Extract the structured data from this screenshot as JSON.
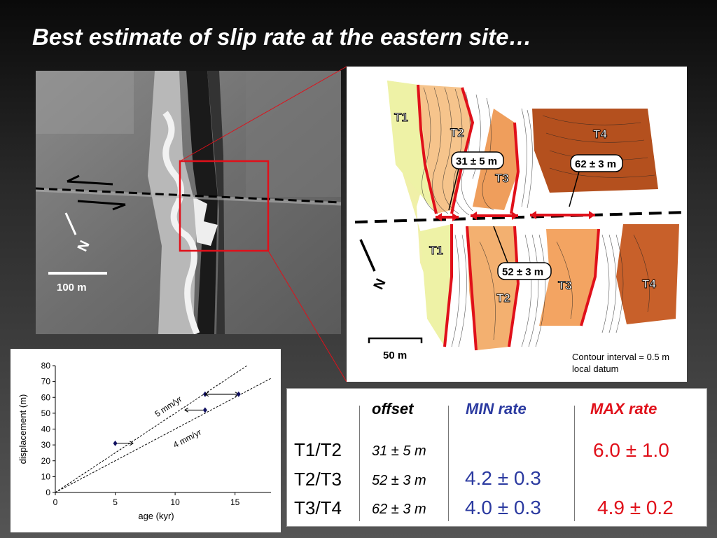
{
  "title": "Best estimate of slip rate at the eastern site…",
  "photo": {
    "scale_label": "100 m",
    "north_label": "N"
  },
  "map": {
    "terrace_labels_north": [
      "T1",
      "T2",
      "T3",
      "T4"
    ],
    "terrace_labels_south": [
      "T1",
      "T2",
      "T3",
      "T4"
    ],
    "offset_callouts": [
      "31 ± 5 m",
      "62 ± 3 m",
      "52 ± 3 m"
    ],
    "north_label": "N",
    "scale_label": "50 m",
    "contour_note_1": "Contour interval = 0.5 m",
    "contour_note_2": "local datum"
  },
  "chart_data": {
    "type": "scatter",
    "xlabel": "age (kyr)",
    "ylabel": "displacement (m)",
    "xlim": [
      0,
      18
    ],
    "ylim": [
      0,
      80
    ],
    "xticks": [
      0,
      5,
      10,
      15
    ],
    "yticks": [
      0,
      10,
      20,
      30,
      40,
      50,
      60,
      70,
      80
    ],
    "points": [
      {
        "x": 5,
        "y": 31,
        "x_err_to": 6.5
      },
      {
        "x": 12.5,
        "y": 52,
        "x_err_to": 10.8
      },
      {
        "x": 12.5,
        "y": 62,
        "x_err_to": 15.3
      },
      {
        "x": 15.3,
        "y": 62,
        "x_err_to": 12.5
      }
    ],
    "rate_lines": [
      {
        "name": "5 mm/yr",
        "slope": 5
      },
      {
        "name": "4 mm/yr",
        "slope": 4
      }
    ]
  },
  "table": {
    "headers": {
      "offset": "offset",
      "min": "MIN rate",
      "max": "MAX rate"
    },
    "rows": [
      {
        "label": "T1/T2",
        "offset": "31 ± 5 m",
        "min": "",
        "max": "6.0 ± 1.0"
      },
      {
        "label": "T2/T3",
        "offset": "52 ± 3 m",
        "min": "4.2 ± 0.3",
        "max": ""
      },
      {
        "label": "T3/T4",
        "offset": "62 ± 3 m",
        "min": "4.0 ± 0.3",
        "max": "4.9 ± 0.2"
      }
    ],
    "colors": {
      "min": "#2b3aa0",
      "max": "#e0101a"
    }
  }
}
